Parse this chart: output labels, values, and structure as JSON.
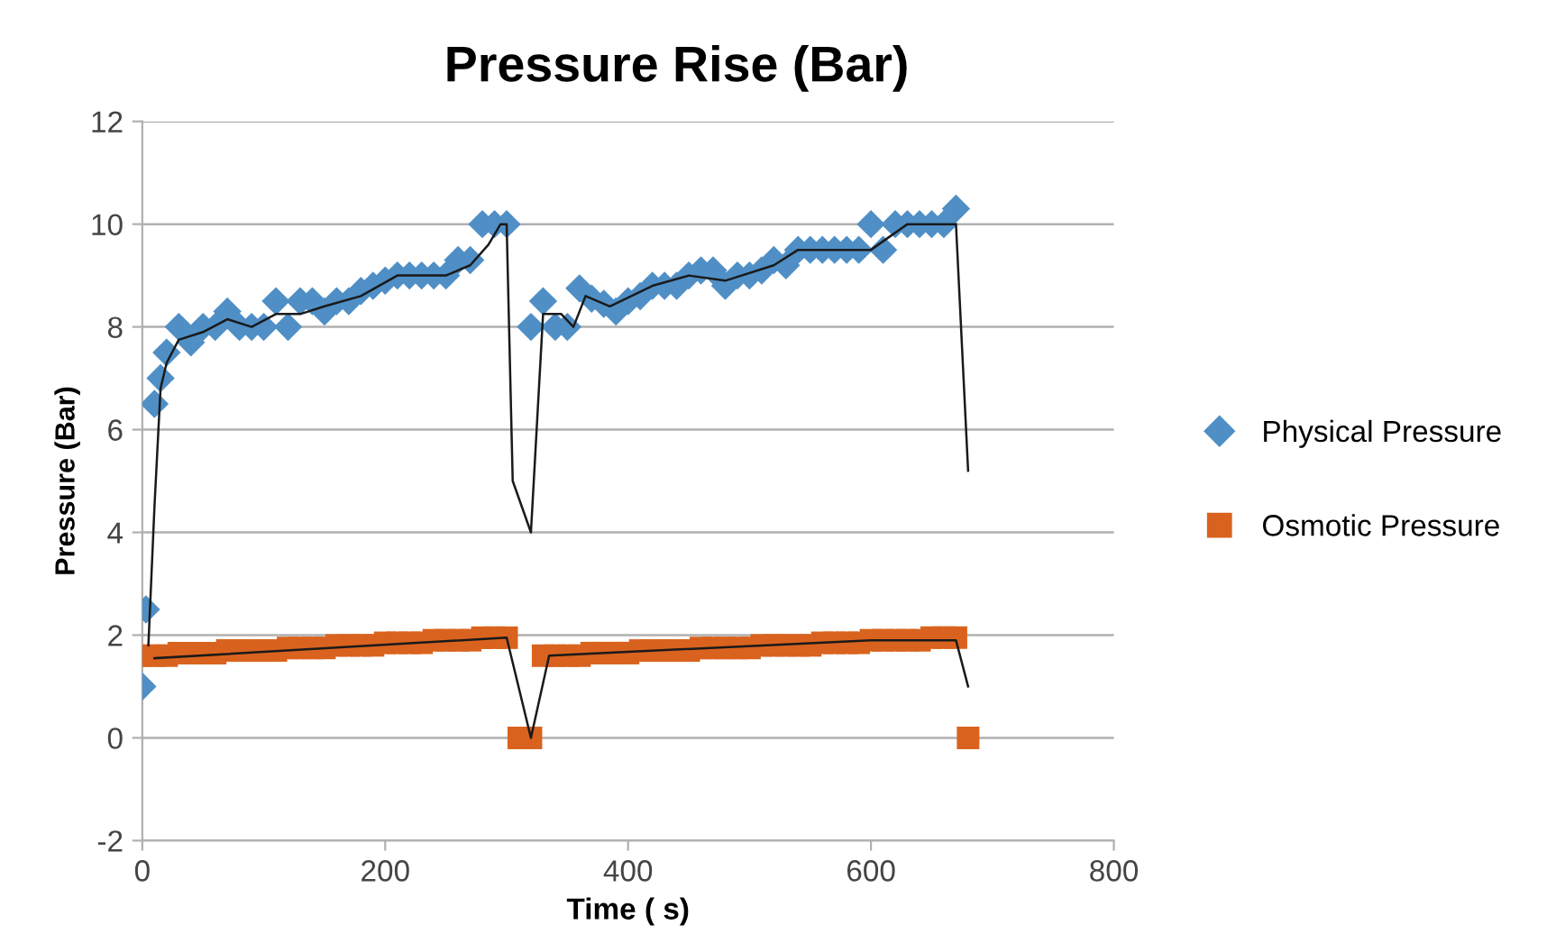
{
  "chart_data": {
    "type": "scatter",
    "title": "Pressure Rise (Bar)",
    "xlabel": "Time ( s)",
    "ylabel": "Pressure (Bar)",
    "xlim": [
      0,
      800
    ],
    "xticks": [
      0,
      200,
      400,
      600,
      800
    ],
    "ylim": [
      -2,
      12
    ],
    "yticks": [
      -2,
      0,
      2,
      4,
      6,
      8,
      10,
      12
    ],
    "grid": "y",
    "legend": "right",
    "series": [
      {
        "name": "Physical Pressure",
        "color": "#4f8fc6",
        "marker": "diamond",
        "x": [
          0,
          3,
          10,
          15,
          20,
          30,
          40,
          50,
          60,
          70,
          80,
          90,
          100,
          110,
          120,
          130,
          140,
          150,
          160,
          170,
          180,
          190,
          200,
          210,
          220,
          230,
          240,
          250,
          260,
          270,
          280,
          290,
          300,
          320,
          330,
          340,
          350,
          360,
          370,
          380,
          390,
          400,
          410,
          420,
          430,
          440,
          450,
          460,
          470,
          480,
          490,
          500,
          510,
          520,
          530,
          540,
          550,
          560,
          570,
          580,
          590,
          600,
          610,
          620,
          630,
          640,
          650,
          660,
          670
        ],
        "values": [
          1.0,
          2.5,
          6.5,
          7.0,
          7.5,
          8.0,
          7.7,
          8.0,
          8.0,
          8.3,
          8.0,
          8.0,
          8.0,
          8.5,
          8.0,
          8.5,
          8.5,
          8.3,
          8.5,
          8.5,
          8.7,
          8.8,
          8.9,
          9.0,
          9.0,
          9.0,
          9.0,
          9.0,
          9.3,
          9.3,
          10.0,
          10.0,
          10.0,
          8.0,
          8.5,
          8.0,
          8.0,
          8.75,
          8.55,
          8.45,
          8.3,
          8.5,
          8.6,
          8.8,
          8.8,
          8.8,
          9.0,
          9.1,
          9.1,
          8.8,
          9.0,
          9.0,
          9.1,
          9.3,
          9.2,
          9.5,
          9.5,
          9.5,
          9.5,
          9.5,
          9.5,
          10.0,
          9.5,
          10.0,
          10.0,
          10.0,
          10.0,
          10.0,
          10.3
        ]
      },
      {
        "name": "Osmotic Pressure",
        "color": "#d9631e",
        "marker": "square",
        "x": [
          0,
          10,
          20,
          30,
          40,
          50,
          60,
          70,
          80,
          90,
          100,
          110,
          120,
          130,
          140,
          150,
          160,
          170,
          180,
          190,
          200,
          210,
          220,
          230,
          240,
          250,
          260,
          270,
          280,
          290,
          300,
          310,
          320,
          330,
          340,
          350,
          360,
          370,
          380,
          390,
          400,
          410,
          420,
          430,
          440,
          450,
          460,
          470,
          480,
          490,
          500,
          510,
          520,
          530,
          540,
          550,
          560,
          570,
          580,
          590,
          600,
          610,
          620,
          630,
          640,
          650,
          660,
          670,
          680
        ],
        "values": [
          1.6,
          1.6,
          1.6,
          1.65,
          1.65,
          1.65,
          1.65,
          1.7,
          1.7,
          1.7,
          1.7,
          1.7,
          1.75,
          1.75,
          1.75,
          1.75,
          1.8,
          1.8,
          1.8,
          1.8,
          1.85,
          1.85,
          1.85,
          1.85,
          1.9,
          1.9,
          1.9,
          1.9,
          1.95,
          1.95,
          1.95,
          0,
          0,
          1.6,
          1.6,
          1.6,
          1.6,
          1.65,
          1.65,
          1.65,
          1.65,
          1.7,
          1.7,
          1.7,
          1.7,
          1.7,
          1.75,
          1.75,
          1.75,
          1.75,
          1.75,
          1.8,
          1.8,
          1.8,
          1.8,
          1.8,
          1.85,
          1.85,
          1.85,
          1.85,
          1.9,
          1.9,
          1.9,
          1.9,
          1.9,
          1.95,
          1.95,
          1.95,
          0
        ]
      },
      {
        "type": "line",
        "color": "#1a1a1a",
        "marker": "none",
        "x": [
          5,
          10,
          15,
          20,
          30,
          50,
          70,
          90,
          110,
          130,
          150,
          180,
          210,
          250,
          270,
          285,
          295,
          300,
          305,
          320,
          330,
          345,
          355,
          365,
          385,
          420,
          450,
          480,
          520,
          540,
          600,
          615,
          630,
          670,
          680
        ],
        "values": [
          1.8,
          4.5,
          6.8,
          7.3,
          7.75,
          7.9,
          8.15,
          8.0,
          8.25,
          8.25,
          8.4,
          8.6,
          9.0,
          9.0,
          9.2,
          9.6,
          10.0,
          10.0,
          5.0,
          4.0,
          8.25,
          8.25,
          8.0,
          8.6,
          8.4,
          8.8,
          9.0,
          8.9,
          9.2,
          9.5,
          9.5,
          9.75,
          10.0,
          10.0,
          5.2
        ]
      },
      {
        "type": "line",
        "color": "#1a1a1a",
        "marker": "none",
        "x": [
          10,
          300,
          320,
          335,
          600,
          670,
          680
        ],
        "values": [
          1.55,
          1.95,
          0,
          1.6,
          1.9,
          1.9,
          1.0
        ]
      }
    ]
  }
}
